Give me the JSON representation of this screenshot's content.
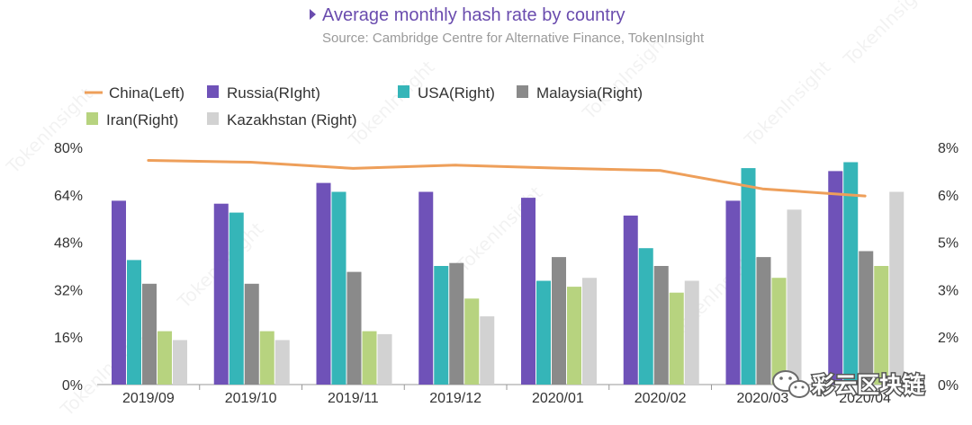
{
  "chart_data": {
    "type": "bar",
    "title": "Average monthly hash rate by country",
    "subtitle": "Source: Cambridge Centre for Alternative Finance, TokenInsight",
    "categories": [
      "2019/09",
      "2019/10",
      "2019/11",
      "2019/12",
      "2020/01",
      "2020/02",
      "2020/03",
      "2020/04"
    ],
    "left_axis": {
      "ylim": [
        0,
        80
      ],
      "ticks": [
        "0%",
        "16%",
        "32%",
        "48%",
        "64%",
        "80%"
      ]
    },
    "right_axis": {
      "ylim": [
        0,
        8
      ],
      "ticks": [
        "0%",
        "2%",
        "3%",
        "5%",
        "6%",
        "8%"
      ]
    },
    "line_series": {
      "name": "China(Left)",
      "axis": "left",
      "color": "#ee9f5a",
      "values": [
        75.6,
        75.0,
        72.9,
        74.0,
        73.0,
        72.2,
        66.0,
        63.6
      ]
    },
    "series": [
      {
        "name": "Russia(RIght)",
        "axis": "right",
        "color": "#6f52b8",
        "values": [
          6.2,
          6.1,
          6.8,
          6.5,
          6.3,
          5.7,
          6.2,
          7.2
        ]
      },
      {
        "name": "USA(Right)",
        "axis": "right",
        "color": "#35b5b8",
        "values": [
          4.2,
          5.8,
          6.5,
          4.0,
          3.5,
          4.6,
          7.3,
          7.5
        ]
      },
      {
        "name": "Malaysia(Right)",
        "axis": "right",
        "color": "#8a8a8a",
        "values": [
          3.4,
          3.4,
          3.8,
          4.1,
          4.3,
          4.0,
          4.3,
          4.5
        ]
      },
      {
        "name": "Iran(Right)",
        "axis": "right",
        "color": "#b7d37f",
        "values": [
          1.8,
          1.8,
          1.8,
          2.9,
          3.3,
          3.1,
          3.6,
          4.0
        ]
      },
      {
        "name": "Kazakhstan  (Right)",
        "axis": "right",
        "color": "#d2d2d2",
        "values": [
          1.5,
          1.5,
          1.7,
          2.3,
          3.6,
          3.5,
          5.9,
          6.5
        ]
      }
    ],
    "legend_rows": [
      [
        "China(Left)",
        "Russia(RIght)",
        "USA(Right)",
        "Malaysia(Right)"
      ],
      [
        "Iran(Right)",
        "Kazakhstan  (Right)"
      ]
    ],
    "legend_position": "top-left",
    "grid": false
  },
  "colors": {
    "title": "#6a4cae",
    "subtitle": "#9a9a9a",
    "axis": "#999999"
  },
  "watermark_logo_text": "彩云区块链",
  "watermark_brand": "TokenInsight"
}
